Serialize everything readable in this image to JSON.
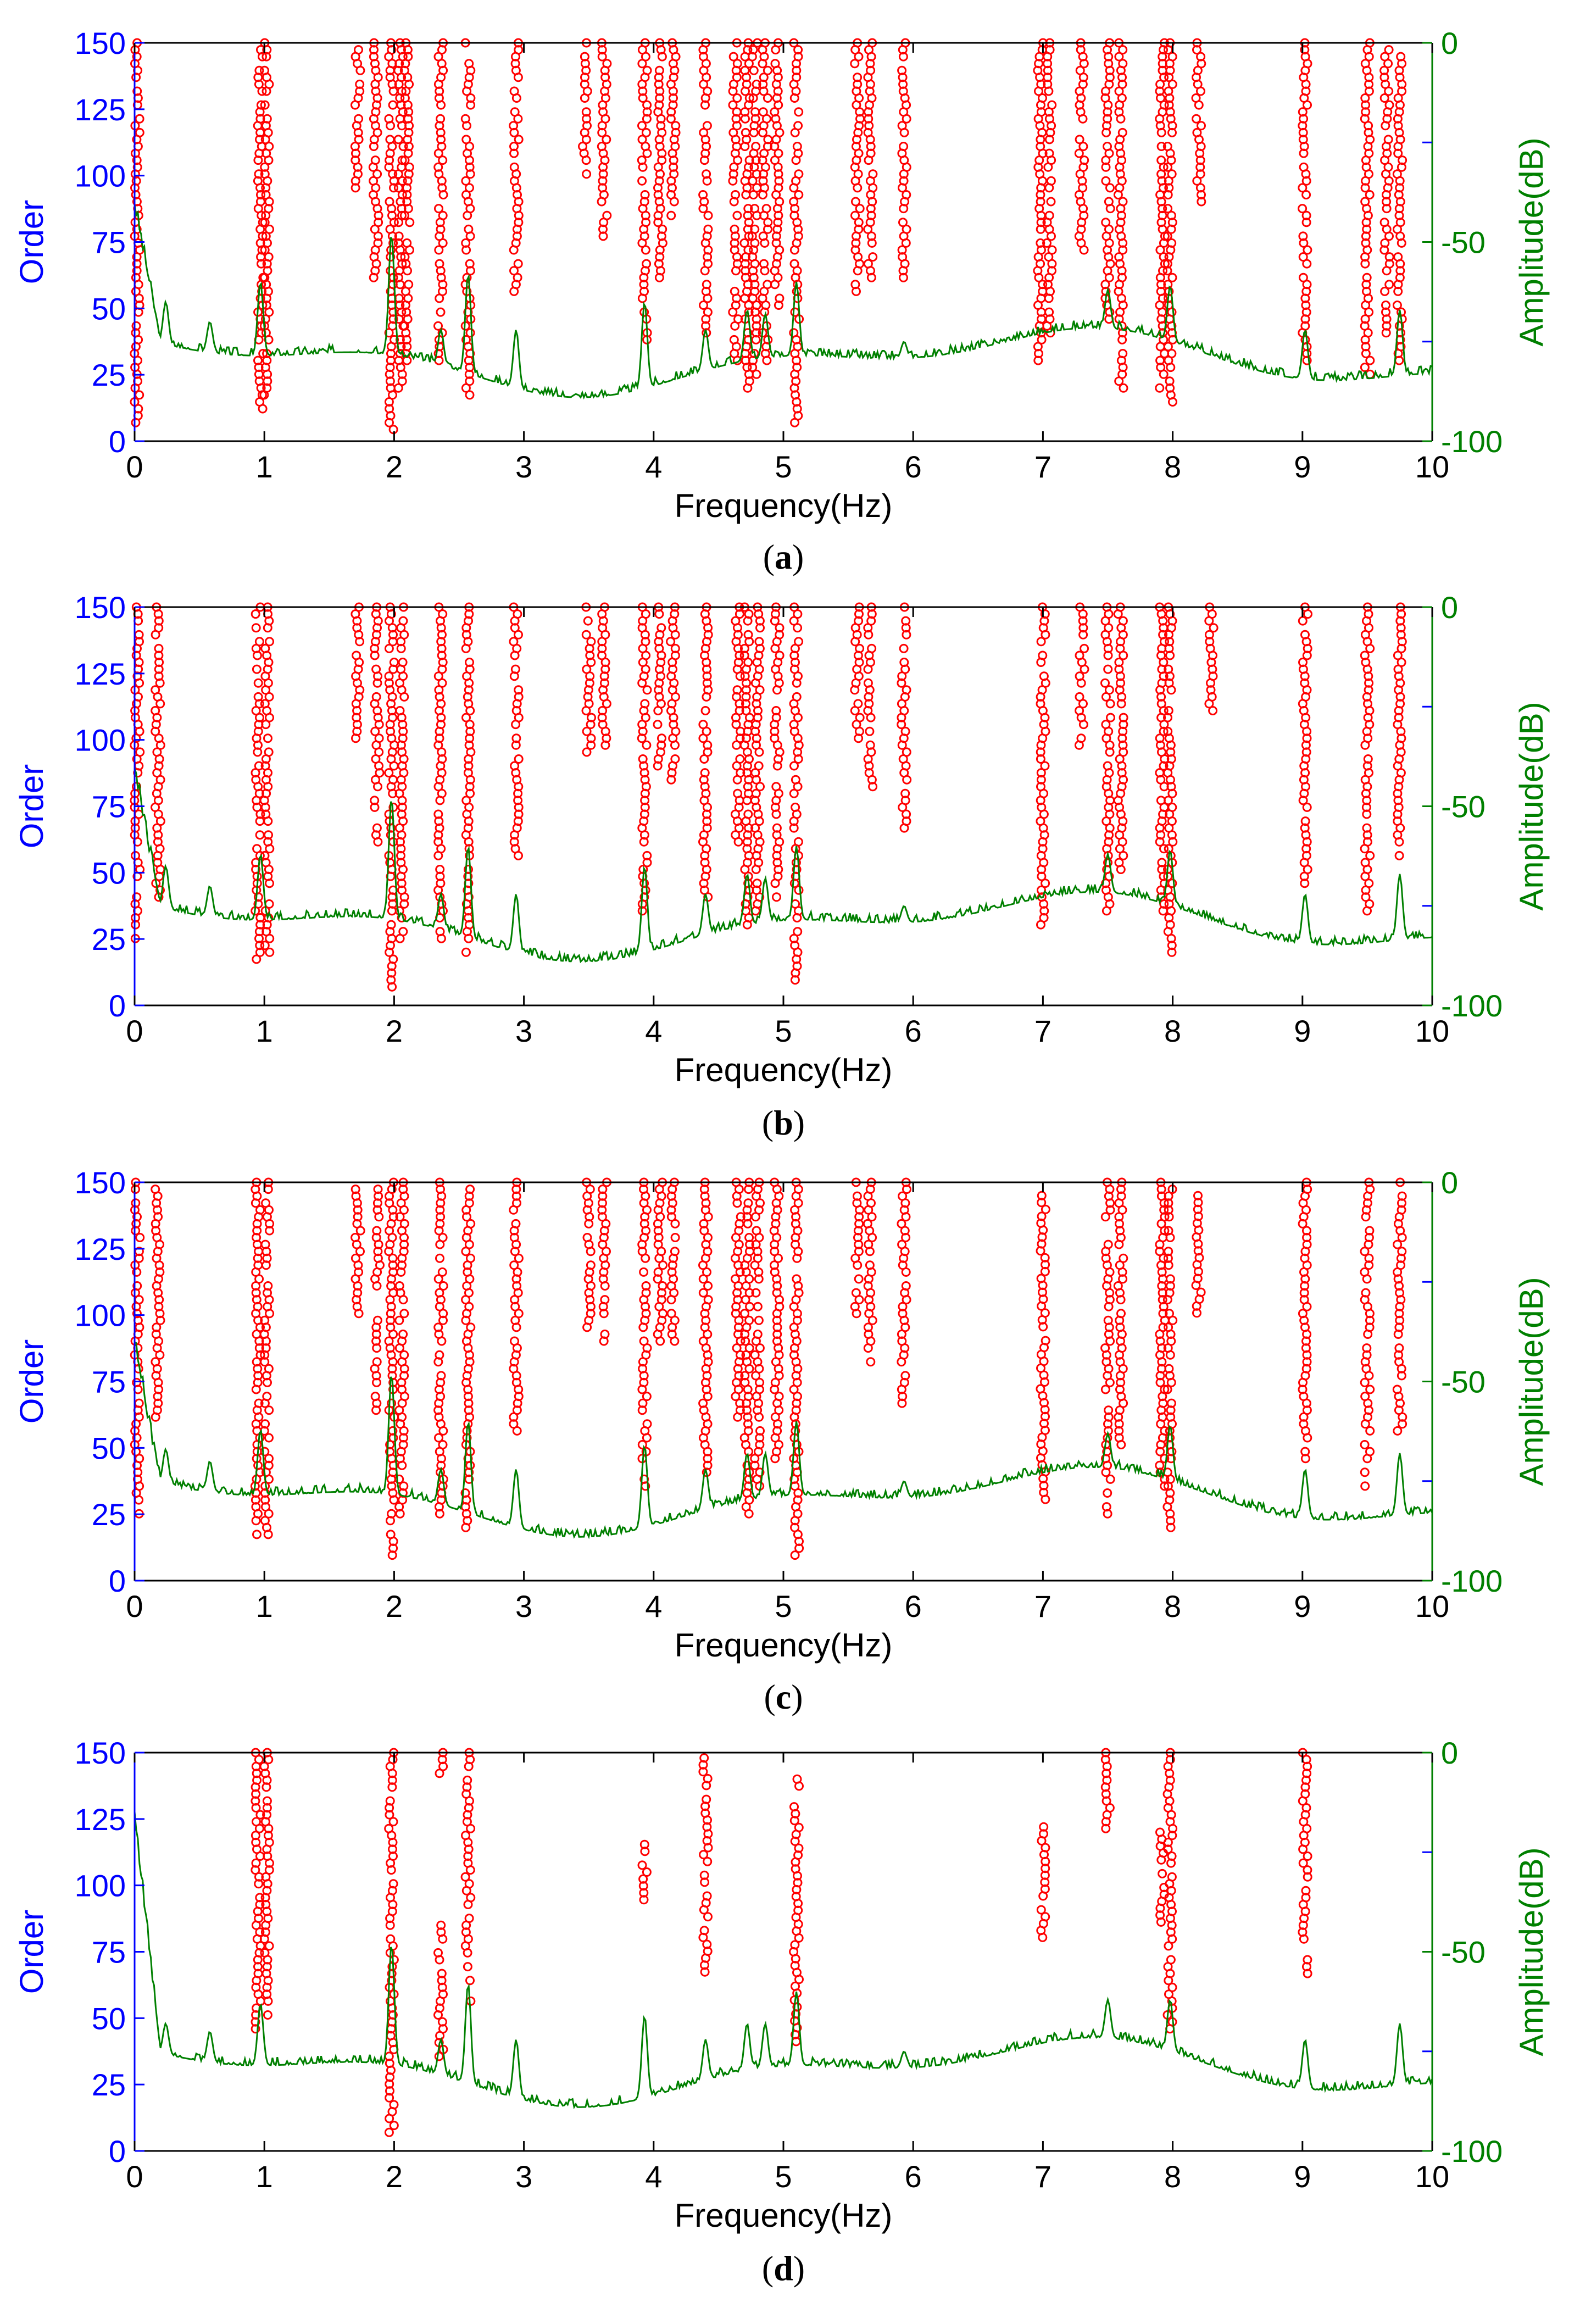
{
  "colors": {
    "order_axis": "#0000ff",
    "amplitude_axis": "#008000",
    "markers": "#ff0000",
    "spectrum_line": "#008000",
    "frame": "#000000"
  },
  "chart_data": [
    {
      "id": "a",
      "type": "scatter",
      "caption_letter": "a",
      "title": "",
      "xlabel": "Frequency(Hz)",
      "ylabel": "Order",
      "y2label": "Amplitude(dB)",
      "xlim": [
        0,
        10
      ],
      "ylim": [
        0,
        150
      ],
      "y2lim": [
        -100,
        0
      ],
      "x_ticks": [
        "0",
        "1",
        "2",
        "3",
        "4",
        "5",
        "6",
        "7",
        "8",
        "9",
        "10"
      ],
      "y_ticks": [
        "0",
        "25",
        "50",
        "75",
        "100",
        "125",
        "150"
      ],
      "y2_ticks": [
        "-100",
        "-50",
        "0"
      ],
      "series_stems": [
        {
          "f": 0.02,
          "order_min": 2,
          "order_max": 150
        },
        {
          "f": 0.97,
          "order_min": 12,
          "order_max": 150
        },
        {
          "f": 1.02,
          "order_min": 15,
          "order_max": 150
        },
        {
          "f": 1.72,
          "order_min": 95,
          "order_max": 150
        },
        {
          "f": 1.86,
          "order_min": 60,
          "order_max": 150
        },
        {
          "f": 1.98,
          "order_min": 3,
          "order_max": 150
        },
        {
          "f": 2.05,
          "order_min": 20,
          "order_max": 150
        },
        {
          "f": 2.1,
          "order_min": 30,
          "order_max": 150
        },
        {
          "f": 2.36,
          "order_min": 30,
          "order_max": 150
        },
        {
          "f": 2.57,
          "order_min": 15,
          "order_max": 150
        },
        {
          "f": 2.94,
          "order_min": 55,
          "order_max": 150
        },
        {
          "f": 3.47,
          "order_min": 100,
          "order_max": 150
        },
        {
          "f": 3.62,
          "order_min": 75,
          "order_max": 150
        },
        {
          "f": 3.93,
          "order_min": 35,
          "order_max": 150
        },
        {
          "f": 4.05,
          "order_min": 60,
          "order_max": 150
        },
        {
          "f": 4.15,
          "order_min": 80,
          "order_max": 150
        },
        {
          "f": 4.4,
          "order_min": 40,
          "order_max": 150
        },
        {
          "f": 4.63,
          "order_min": 30,
          "order_max": 150
        },
        {
          "f": 4.72,
          "order_min": 20,
          "order_max": 150
        },
        {
          "f": 4.78,
          "order_min": 25,
          "order_max": 150
        },
        {
          "f": 4.86,
          "order_min": 30,
          "order_max": 150
        },
        {
          "f": 4.95,
          "order_min": 50,
          "order_max": 150
        },
        {
          "f": 5.1,
          "order_min": 5,
          "order_max": 150
        },
        {
          "f": 5.57,
          "order_min": 55,
          "order_max": 150
        },
        {
          "f": 5.67,
          "order_min": 60,
          "order_max": 150
        },
        {
          "f": 5.93,
          "order_min": 60,
          "order_max": 150
        },
        {
          "f": 6.98,
          "order_min": 30,
          "order_max": 150
        },
        {
          "f": 7.05,
          "order_min": 40,
          "order_max": 150
        },
        {
          "f": 7.3,
          "order_min": 70,
          "order_max": 150
        },
        {
          "f": 7.5,
          "order_min": 45,
          "order_max": 150
        },
        {
          "f": 7.6,
          "order_min": 20,
          "order_max": 150
        },
        {
          "f": 7.92,
          "order_min": 18,
          "order_max": 150
        },
        {
          "f": 7.98,
          "order_min": 10,
          "order_max": 150
        },
        {
          "f": 8.2,
          "order_min": 90,
          "order_max": 150
        },
        {
          "f": 9.02,
          "order_min": 30,
          "order_max": 150
        },
        {
          "f": 9.5,
          "order_min": 25,
          "order_max": 150
        },
        {
          "f": 9.65,
          "order_min": 40,
          "order_max": 150
        },
        {
          "f": 9.75,
          "order_min": 30,
          "order_max": 150
        }
      ],
      "spectrum_peaks_db": [
        {
          "f": 0.0,
          "db": -40
        },
        {
          "f": 0.24,
          "db": -65
        },
        {
          "f": 0.58,
          "db": -70
        },
        {
          "f": 0.97,
          "db": -60
        },
        {
          "f": 1.98,
          "db": -48
        },
        {
          "f": 2.36,
          "db": -72
        },
        {
          "f": 2.57,
          "db": -58
        },
        {
          "f": 2.94,
          "db": -72
        },
        {
          "f": 3.93,
          "db": -65
        },
        {
          "f": 4.4,
          "db": -72
        },
        {
          "f": 4.72,
          "db": -67
        },
        {
          "f": 4.86,
          "db": -68
        },
        {
          "f": 5.1,
          "db": -60
        },
        {
          "f": 5.93,
          "db": -75
        },
        {
          "f": 7.5,
          "db": -62
        },
        {
          "f": 7.98,
          "db": -61
        },
        {
          "f": 9.02,
          "db": -72
        },
        {
          "f": 9.75,
          "db": -67
        }
      ]
    },
    {
      "id": "b",
      "type": "scatter",
      "caption_letter": "b",
      "title": "",
      "xlabel": "Frequency(Hz)",
      "ylabel": "Order",
      "y2label": "Amplitude(dB)",
      "xlim": [
        0,
        10
      ],
      "ylim": [
        0,
        150
      ],
      "y2lim": [
        -100,
        0
      ],
      "x_ticks": [
        "0",
        "1",
        "2",
        "3",
        "4",
        "5",
        "6",
        "7",
        "8",
        "9",
        "10"
      ],
      "y_ticks": [
        "0",
        "25",
        "50",
        "75",
        "100",
        "125",
        "150"
      ],
      "y2_ticks": [
        "-100",
        "-50",
        "0"
      ],
      "series_stems": [
        {
          "f": 0.02,
          "order_min": 25,
          "order_max": 150
        },
        {
          "f": 0.18,
          "order_min": 40,
          "order_max": 150
        },
        {
          "f": 0.95,
          "order_min": 15,
          "order_max": 150
        },
        {
          "f": 1.02,
          "order_min": 18,
          "order_max": 150
        },
        {
          "f": 1.72,
          "order_min": 100,
          "order_max": 150
        },
        {
          "f": 1.87,
          "order_min": 60,
          "order_max": 150
        },
        {
          "f": 1.98,
          "order_min": 5,
          "order_max": 150
        },
        {
          "f": 2.06,
          "order_min": 25,
          "order_max": 150
        },
        {
          "f": 2.36,
          "order_min": 25,
          "order_max": 150
        },
        {
          "f": 2.57,
          "order_min": 18,
          "order_max": 150
        },
        {
          "f": 2.94,
          "order_min": 55,
          "order_max": 150
        },
        {
          "f": 3.5,
          "order_min": 95,
          "order_max": 150
        },
        {
          "f": 3.62,
          "order_min": 95,
          "order_max": 150
        },
        {
          "f": 3.93,
          "order_min": 35,
          "order_max": 150
        },
        {
          "f": 4.05,
          "order_min": 90,
          "order_max": 150
        },
        {
          "f": 4.15,
          "order_min": 85,
          "order_max": 150
        },
        {
          "f": 4.4,
          "order_min": 40,
          "order_max": 150
        },
        {
          "f": 4.65,
          "order_min": 60,
          "order_max": 150
        },
        {
          "f": 4.72,
          "order_min": 30,
          "order_max": 150
        },
        {
          "f": 4.8,
          "order_min": 35,
          "order_max": 150
        },
        {
          "f": 4.95,
          "order_min": 40,
          "order_max": 150
        },
        {
          "f": 5.1,
          "order_min": 8,
          "order_max": 150
        },
        {
          "f": 5.57,
          "order_min": 100,
          "order_max": 150
        },
        {
          "f": 5.67,
          "order_min": 80,
          "order_max": 150
        },
        {
          "f": 5.93,
          "order_min": 65,
          "order_max": 150
        },
        {
          "f": 7.0,
          "order_min": 30,
          "order_max": 150
        },
        {
          "f": 7.3,
          "order_min": 95,
          "order_max": 150
        },
        {
          "f": 7.5,
          "order_min": 35,
          "order_max": 150
        },
        {
          "f": 7.6,
          "order_min": 50,
          "order_max": 150
        },
        {
          "f": 7.92,
          "order_min": 35,
          "order_max": 150
        },
        {
          "f": 7.98,
          "order_min": 18,
          "order_max": 150
        },
        {
          "f": 8.3,
          "order_min": 110,
          "order_max": 150
        },
        {
          "f": 9.02,
          "order_min": 45,
          "order_max": 150
        },
        {
          "f": 9.5,
          "order_min": 35,
          "order_max": 150
        },
        {
          "f": 9.75,
          "order_min": 55,
          "order_max": 150
        }
      ],
      "spectrum_peaks_db": [
        {
          "f": 0.0,
          "db": -40
        },
        {
          "f": 0.24,
          "db": -65
        },
        {
          "f": 0.58,
          "db": -70
        },
        {
          "f": 0.97,
          "db": -62
        },
        {
          "f": 1.98,
          "db": -48
        },
        {
          "f": 2.36,
          "db": -72
        },
        {
          "f": 2.57,
          "db": -60
        },
        {
          "f": 2.94,
          "db": -72
        },
        {
          "f": 3.93,
          "db": -65
        },
        {
          "f": 4.4,
          "db": -72
        },
        {
          "f": 4.72,
          "db": -67
        },
        {
          "f": 4.86,
          "db": -68
        },
        {
          "f": 5.1,
          "db": -60
        },
        {
          "f": 5.93,
          "db": -75
        },
        {
          "f": 7.5,
          "db": -62
        },
        {
          "f": 7.98,
          "db": -61
        },
        {
          "f": 9.02,
          "db": -72
        },
        {
          "f": 9.75,
          "db": -67
        }
      ]
    },
    {
      "id": "c",
      "type": "scatter",
      "caption_letter": "c",
      "title": "",
      "xlabel": "Frequency(Hz)",
      "ylabel": "Order",
      "y2label": "Amplitude(dB)",
      "xlim": [
        0,
        10
      ],
      "ylim": [
        0,
        150
      ],
      "y2lim": [
        -100,
        0
      ],
      "x_ticks": [
        "0",
        "1",
        "2",
        "3",
        "4",
        "5",
        "6",
        "7",
        "8",
        "9",
        "10"
      ],
      "y_ticks": [
        "0",
        "25",
        "50",
        "75",
        "100",
        "125",
        "150"
      ],
      "y2_ticks": [
        "-100",
        "-50",
        "0"
      ],
      "series_stems": [
        {
          "f": 0.02,
          "order_min": 25,
          "order_max": 150
        },
        {
          "f": 0.18,
          "order_min": 60,
          "order_max": 150
        },
        {
          "f": 0.95,
          "order_min": 15,
          "order_max": 150
        },
        {
          "f": 1.02,
          "order_min": 15,
          "order_max": 150
        },
        {
          "f": 1.72,
          "order_min": 100,
          "order_max": 150
        },
        {
          "f": 1.87,
          "order_min": 60,
          "order_max": 150
        },
        {
          "f": 1.98,
          "order_min": 5,
          "order_max": 150
        },
        {
          "f": 2.06,
          "order_min": 25,
          "order_max": 150
        },
        {
          "f": 2.36,
          "order_min": 25,
          "order_max": 150
        },
        {
          "f": 2.57,
          "order_min": 18,
          "order_max": 150
        },
        {
          "f": 2.94,
          "order_min": 55,
          "order_max": 150
        },
        {
          "f": 3.5,
          "order_min": 95,
          "order_max": 150
        },
        {
          "f": 3.62,
          "order_min": 90,
          "order_max": 150
        },
        {
          "f": 3.93,
          "order_min": 35,
          "order_max": 150
        },
        {
          "f": 4.05,
          "order_min": 90,
          "order_max": 150
        },
        {
          "f": 4.15,
          "order_min": 90,
          "order_max": 150
        },
        {
          "f": 4.4,
          "order_min": 40,
          "order_max": 150
        },
        {
          "f": 4.65,
          "order_min": 60,
          "order_max": 150
        },
        {
          "f": 4.72,
          "order_min": 25,
          "order_max": 150
        },
        {
          "f": 4.8,
          "order_min": 35,
          "order_max": 150
        },
        {
          "f": 4.95,
          "order_min": 45,
          "order_max": 150
        },
        {
          "f": 5.1,
          "order_min": 8,
          "order_max": 150
        },
        {
          "f": 5.57,
          "order_min": 100,
          "order_max": 150
        },
        {
          "f": 5.67,
          "order_min": 80,
          "order_max": 150
        },
        {
          "f": 5.93,
          "order_min": 65,
          "order_max": 150
        },
        {
          "f": 7.0,
          "order_min": 30,
          "order_max": 145
        },
        {
          "f": 7.5,
          "order_min": 25,
          "order_max": 150
        },
        {
          "f": 7.6,
          "order_min": 50,
          "order_max": 150
        },
        {
          "f": 7.92,
          "order_min": 35,
          "order_max": 150
        },
        {
          "f": 7.98,
          "order_min": 18,
          "order_max": 150
        },
        {
          "f": 8.2,
          "order_min": 100,
          "order_max": 145
        },
        {
          "f": 9.02,
          "order_min": 45,
          "order_max": 150
        },
        {
          "f": 9.5,
          "order_min": 35,
          "order_max": 150
        },
        {
          "f": 9.75,
          "order_min": 55,
          "order_max": 150
        }
      ],
      "spectrum_peaks_db": [
        {
          "f": 0.0,
          "db": -40
        },
        {
          "f": 0.24,
          "db": -67
        },
        {
          "f": 0.58,
          "db": -70
        },
        {
          "f": 0.97,
          "db": -62
        },
        {
          "f": 1.98,
          "db": -48
        },
        {
          "f": 2.36,
          "db": -72
        },
        {
          "f": 2.57,
          "db": -60
        },
        {
          "f": 2.94,
          "db": -72
        },
        {
          "f": 3.93,
          "db": -66
        },
        {
          "f": 4.4,
          "db": -72
        },
        {
          "f": 4.72,
          "db": -68
        },
        {
          "f": 4.86,
          "db": -68
        },
        {
          "f": 5.1,
          "db": -60
        },
        {
          "f": 5.93,
          "db": -75
        },
        {
          "f": 7.5,
          "db": -63
        },
        {
          "f": 7.98,
          "db": -61
        },
        {
          "f": 9.02,
          "db": -72
        },
        {
          "f": 9.75,
          "db": -68
        }
      ]
    },
    {
      "id": "d",
      "type": "scatter",
      "caption_letter": "d",
      "title": "",
      "xlabel": "Frequency(Hz)",
      "ylabel": "Order",
      "y2label": "Amplitude(dB)",
      "xlim": [
        0,
        10
      ],
      "ylim": [
        0,
        150
      ],
      "y2lim": [
        -100,
        0
      ],
      "x_ticks": [
        "0",
        "1",
        "2",
        "3",
        "4",
        "5",
        "6",
        "7",
        "8",
        "9",
        "10"
      ],
      "y_ticks": [
        "0",
        "25",
        "50",
        "75",
        "100",
        "125",
        "150"
      ],
      "y2_ticks": [
        "-100",
        "-50",
        "0"
      ],
      "series_stems": [
        {
          "f": 0.95,
          "order_min": 45,
          "order_max": 150
        },
        {
          "f": 1.02,
          "order_min": 50,
          "order_max": 150
        },
        {
          "f": 1.98,
          "order_min": 5,
          "order_max": 150
        },
        {
          "f": 2.36,
          "order_min": 35,
          "order_max": 85
        },
        {
          "f": 2.36,
          "order_min": 140,
          "order_max": 150
        },
        {
          "f": 2.57,
          "order_min": 55,
          "order_max": 150
        },
        {
          "f": 3.93,
          "order_min": 90,
          "order_max": 118
        },
        {
          "f": 4.4,
          "order_min": 65,
          "order_max": 148
        },
        {
          "f": 5.1,
          "order_min": 40,
          "order_max": 140
        },
        {
          "f": 7.0,
          "order_min": 80,
          "order_max": 122
        },
        {
          "f": 7.5,
          "order_min": 120,
          "order_max": 150
        },
        {
          "f": 7.92,
          "order_min": 85,
          "order_max": 120
        },
        {
          "f": 7.98,
          "order_min": 45,
          "order_max": 150
        },
        {
          "f": 9.02,
          "order_min": 65,
          "order_max": 150
        }
      ],
      "spectrum_peaks_db": [
        {
          "f": 0.0,
          "db": -15
        },
        {
          "f": 0.24,
          "db": -68
        },
        {
          "f": 0.58,
          "db": -70
        },
        {
          "f": 0.97,
          "db": -63
        },
        {
          "f": 1.98,
          "db": -48
        },
        {
          "f": 2.36,
          "db": -72
        },
        {
          "f": 2.57,
          "db": -58
        },
        {
          "f": 2.94,
          "db": -72
        },
        {
          "f": 3.93,
          "db": -66
        },
        {
          "f": 4.4,
          "db": -72
        },
        {
          "f": 4.72,
          "db": -68
        },
        {
          "f": 4.86,
          "db": -68
        },
        {
          "f": 5.1,
          "db": -60
        },
        {
          "f": 5.93,
          "db": -75
        },
        {
          "f": 7.5,
          "db": -62
        },
        {
          "f": 7.98,
          "db": -62
        },
        {
          "f": 9.02,
          "db": -72
        },
        {
          "f": 9.75,
          "db": -68
        }
      ]
    }
  ]
}
